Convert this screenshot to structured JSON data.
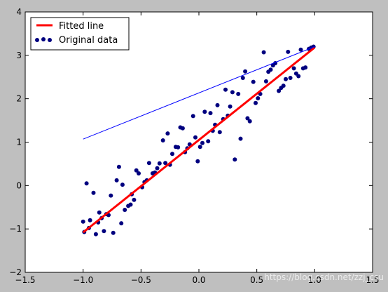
{
  "chart_data": {
    "type": "scatter",
    "xlim": [
      -1.5,
      1.5
    ],
    "ylim": [
      -2,
      4
    ],
    "xticks": [
      -1.5,
      -1.0,
      -0.5,
      0.0,
      0.5,
      1.0,
      1.5
    ],
    "yticks": [
      -2,
      -1,
      0,
      1,
      2,
      3,
      4
    ],
    "xtick_labels": [
      "−1.5",
      "−1.0",
      "−0.5",
      "0.0",
      "0.5",
      "1.0",
      "1.5"
    ],
    "ytick_labels": [
      "−2",
      "−1",
      "0",
      "1",
      "2",
      "3",
      "4"
    ],
    "grid": false,
    "legend_position": "top-left",
    "legend": {
      "fitted": "Fitted line",
      "original": "Original data"
    },
    "watermark": "https://blog.csdn.net/zzj_csu",
    "series": [
      {
        "name": "Original data",
        "kind": "scatter",
        "color": "#00007f",
        "points": [
          [
            -1.0,
            -0.83
          ],
          [
            -0.99,
            -1.07
          ],
          [
            -0.97,
            0.05
          ],
          [
            -0.95,
            -0.98
          ],
          [
            -0.94,
            -0.8
          ],
          [
            -0.91,
            -0.17
          ],
          [
            -0.89,
            -1.12
          ],
          [
            -0.87,
            -0.85
          ],
          [
            -0.86,
            -0.62
          ],
          [
            -0.84,
            -0.75
          ],
          [
            -0.82,
            -1.05
          ],
          [
            -0.8,
            -0.66
          ],
          [
            -0.78,
            -0.68
          ],
          [
            -0.76,
            -0.23
          ],
          [
            -0.74,
            -1.09
          ],
          [
            -0.71,
            0.12
          ],
          [
            -0.69,
            0.43
          ],
          [
            -0.67,
            -0.87
          ],
          [
            -0.66,
            0.02
          ],
          [
            -0.64,
            -0.56
          ],
          [
            -0.61,
            -0.47
          ],
          [
            -0.59,
            -0.44
          ],
          [
            -0.58,
            -0.2
          ],
          [
            -0.56,
            -0.33
          ],
          [
            -0.54,
            0.35
          ],
          [
            -0.52,
            0.28
          ],
          [
            -0.49,
            -0.04
          ],
          [
            -0.47,
            0.08
          ],
          [
            -0.45,
            0.12
          ],
          [
            -0.43,
            0.52
          ],
          [
            -0.4,
            0.28
          ],
          [
            -0.38,
            0.3
          ],
          [
            -0.36,
            0.4
          ],
          [
            -0.34,
            0.51
          ],
          [
            -0.31,
            1.04
          ],
          [
            -0.29,
            0.52
          ],
          [
            -0.27,
            1.2
          ],
          [
            -0.25,
            0.48
          ],
          [
            -0.23,
            0.73
          ],
          [
            -0.2,
            0.89
          ],
          [
            -0.18,
            0.88
          ],
          [
            -0.16,
            1.34
          ],
          [
            -0.14,
            1.32
          ],
          [
            -0.12,
            0.77
          ],
          [
            -0.1,
            0.86
          ],
          [
            -0.08,
            0.95
          ],
          [
            -0.05,
            1.6
          ],
          [
            -0.03,
            1.11
          ],
          [
            -0.01,
            0.56
          ],
          [
            0.01,
            0.89
          ],
          [
            0.03,
            0.98
          ],
          [
            0.05,
            1.7
          ],
          [
            0.08,
            1.02
          ],
          [
            0.1,
            1.67
          ],
          [
            0.12,
            1.26
          ],
          [
            0.14,
            1.4
          ],
          [
            0.16,
            1.85
          ],
          [
            0.18,
            1.23
          ],
          [
            0.21,
            1.53
          ],
          [
            0.23,
            2.21
          ],
          [
            0.25,
            1.61
          ],
          [
            0.27,
            1.82
          ],
          [
            0.29,
            2.15
          ],
          [
            0.31,
            0.6
          ],
          [
            0.34,
            2.11
          ],
          [
            0.36,
            1.08
          ],
          [
            0.38,
            2.48
          ],
          [
            0.4,
            2.63
          ],
          [
            0.42,
            1.55
          ],
          [
            0.44,
            1.48
          ],
          [
            0.47,
            2.39
          ],
          [
            0.49,
            1.9
          ],
          [
            0.51,
            2.01
          ],
          [
            0.53,
            2.11
          ],
          [
            0.56,
            3.07
          ],
          [
            0.58,
            2.4
          ],
          [
            0.6,
            2.62
          ],
          [
            0.62,
            2.67
          ],
          [
            0.64,
            2.77
          ],
          [
            0.66,
            2.82
          ],
          [
            0.69,
            2.18
          ],
          [
            0.71,
            2.25
          ],
          [
            0.73,
            2.3
          ],
          [
            0.75,
            2.45
          ],
          [
            0.77,
            3.08
          ],
          [
            0.79,
            2.48
          ],
          [
            0.82,
            2.7
          ],
          [
            0.84,
            2.58
          ],
          [
            0.86,
            2.52
          ],
          [
            0.88,
            3.13
          ],
          [
            0.9,
            2.7
          ],
          [
            0.92,
            2.72
          ],
          [
            0.95,
            3.15
          ],
          [
            0.97,
            3.18
          ],
          [
            0.99,
            3.2
          ]
        ]
      },
      {
        "name": "Fitted line",
        "kind": "line",
        "color": "#ff0000",
        "points": [
          [
            -1.0,
            -1.08
          ],
          [
            1.0,
            3.18
          ]
        ]
      },
      {
        "kind": "line",
        "color": "#0000ff",
        "points": [
          [
            -1.0,
            1.07
          ],
          [
            1.0,
            3.2
          ]
        ]
      }
    ]
  }
}
